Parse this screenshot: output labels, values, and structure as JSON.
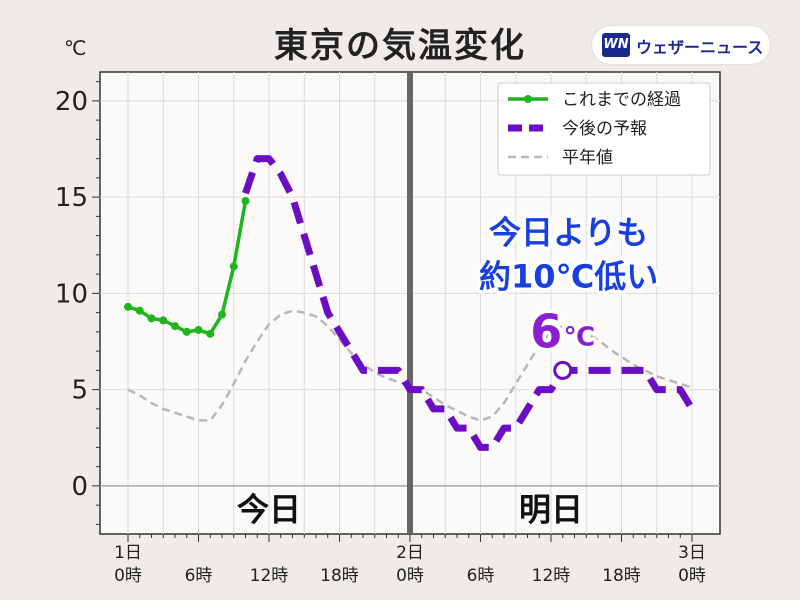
{
  "title": "東京の気温変化",
  "brand": {
    "logo": "WN",
    "name": "ウェザーニュース"
  },
  "chart_data": {
    "type": "line",
    "unit": "℃",
    "ylim": [
      -2.5,
      21.5
    ],
    "y_ticks": [
      0,
      5,
      10,
      15,
      20
    ],
    "x_range": [
      0,
      48
    ],
    "x_ticks": [
      {
        "x": 0,
        "line1": "1日",
        "line2": "0時"
      },
      {
        "x": 6,
        "line1": "",
        "line2": "6時"
      },
      {
        "x": 12,
        "line1": "",
        "line2": "12時"
      },
      {
        "x": 18,
        "line1": "",
        "line2": "18時"
      },
      {
        "x": 24,
        "line1": "2日",
        "line2": "0時"
      },
      {
        "x": 30,
        "line1": "",
        "line2": "6時"
      },
      {
        "x": 36,
        "line1": "",
        "line2": "12時"
      },
      {
        "x": 42,
        "line1": "",
        "line2": "18時"
      },
      {
        "x": 48,
        "line1": "3日",
        "line2": "0時"
      }
    ],
    "grid": true,
    "legend_position": "top-right",
    "series": [
      {
        "name": "これまでの経過",
        "color": "#1fb51f",
        "style": "solid-markers",
        "x": [
          0,
          1,
          2,
          3,
          4,
          5,
          6,
          7,
          8,
          9,
          10
        ],
        "y": [
          9.3,
          9.1,
          8.7,
          8.6,
          8.3,
          8.0,
          8.1,
          7.9,
          8.9,
          11.4,
          14.8
        ]
      },
      {
        "name": "今後の予報",
        "color": "#6a0dc4",
        "style": "dashed-thick",
        "x": [
          10,
          11,
          12,
          13,
          14,
          15,
          16,
          17,
          18,
          19,
          20,
          21,
          22,
          23,
          24,
          25,
          26,
          27,
          28,
          29,
          30,
          31,
          32,
          33,
          34,
          35,
          36,
          37,
          38,
          39,
          40,
          41,
          42,
          43,
          44,
          45,
          46,
          47,
          48
        ],
        "y": [
          15.2,
          17.0,
          17.0,
          16.2,
          15.0,
          13.0,
          11.0,
          9.0,
          8.0,
          7.0,
          6.0,
          6.0,
          6.0,
          6.0,
          5.0,
          5.0,
          4.0,
          4.0,
          3.0,
          3.0,
          2.0,
          2.0,
          3.0,
          3.0,
          4.0,
          5.0,
          5.0,
          6.0,
          6.0,
          6.0,
          6.0,
          6.0,
          6.0,
          6.0,
          6.0,
          5.0,
          5.0,
          5.0,
          4.0
        ]
      },
      {
        "name": "平年値",
        "color": "#b8b8b8",
        "style": "dashed-thin",
        "x": [
          0,
          1,
          2,
          3,
          4,
          5,
          6,
          7,
          8,
          9,
          10,
          11,
          12,
          13,
          14,
          15,
          16,
          17,
          18,
          19,
          20,
          21,
          22,
          23,
          24,
          25,
          26,
          27,
          28,
          29,
          30,
          31,
          32,
          33,
          34,
          35,
          36,
          37,
          38,
          39,
          40,
          41,
          42,
          43,
          44,
          45,
          46,
          47,
          48
        ],
        "y": [
          5.0,
          4.7,
          4.3,
          4.0,
          3.8,
          3.6,
          3.4,
          3.4,
          4.2,
          5.3,
          6.5,
          7.5,
          8.4,
          8.9,
          9.1,
          9.0,
          8.8,
          8.3,
          7.6,
          6.9,
          6.3,
          5.9,
          5.6,
          5.4,
          5.2,
          5.0,
          4.6,
          4.2,
          3.9,
          3.6,
          3.4,
          3.6,
          4.3,
          5.3,
          6.3,
          7.3,
          8.0,
          8.3,
          8.2,
          7.9,
          7.6,
          7.1,
          6.7,
          6.3,
          6.0,
          5.7,
          5.5,
          5.3,
          5.1
        ]
      }
    ],
    "marker_tomorrow_max": {
      "x": 37,
      "y": 6
    },
    "day_labels": [
      {
        "x": 12,
        "text": "今日"
      },
      {
        "x": 36,
        "text": "明日"
      }
    ],
    "annotation": {
      "line1": "今日よりも",
      "line2": "約10℃低い",
      "value_number": "6",
      "value_unit": "℃"
    }
  }
}
